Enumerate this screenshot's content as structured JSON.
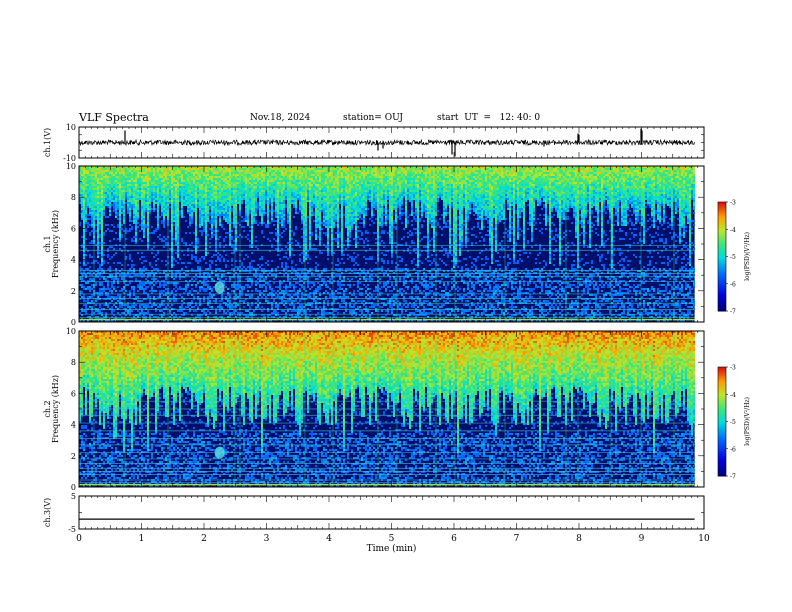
{
  "header": {
    "title": "VLF Spectra",
    "date": "Nov.18, 2024",
    "station": "station= OUJ",
    "start": "start  UT  =   12: 40: 0"
  },
  "chart_data": {
    "type": "heatmap",
    "xlabel": "Time  (min)",
    "xlim": [
      0,
      10
    ],
    "xticks": [
      "0",
      "1",
      "2",
      "3",
      "4",
      "5",
      "6",
      "7",
      "8",
      "9",
      "10"
    ],
    "panels": [
      {
        "id": "ch1-waveform",
        "type": "line",
        "ylabel": "ch.1(V)",
        "ylim": [
          -10,
          10
        ],
        "yticks": [
          "10",
          "-10"
        ],
        "description_level": 0
      },
      {
        "id": "ch1-spectrogram",
        "type": "heatmap",
        "ylabel_top": "ch.1",
        "ylabel": "Frequency  (kHz)",
        "ylim": [
          0,
          10
        ],
        "yticks": [
          "0",
          "2",
          "4",
          "6",
          "8",
          "10"
        ],
        "colorbar": {
          "label": "log(PSD)(V²/Hz)",
          "range": [
            -7,
            -3
          ],
          "ticks": [
            "-3",
            "-4",
            "-5",
            "-6",
            "-7"
          ]
        }
      },
      {
        "id": "ch2-spectrogram",
        "type": "heatmap",
        "ylabel_top": "ch.2",
        "ylabel": "Frequency  (kHz)",
        "ylim": [
          0,
          10
        ],
        "yticks": [
          "0",
          "2",
          "4",
          "6",
          "8",
          "10"
        ],
        "colorbar": {
          "label": "log(PSD)(V²/Hz)",
          "range": [
            -7,
            -3
          ],
          "ticks": [
            "-3",
            "-4",
            "-5",
            "-6",
            "-7"
          ]
        }
      },
      {
        "id": "ch3-waveform",
        "type": "line",
        "ylabel": "ch.3(V)",
        "ylim": [
          -5,
          5
        ],
        "yticks": [
          "5",
          "-5"
        ],
        "constant_level": -2
      }
    ],
    "data_end_min": 9.85
  }
}
